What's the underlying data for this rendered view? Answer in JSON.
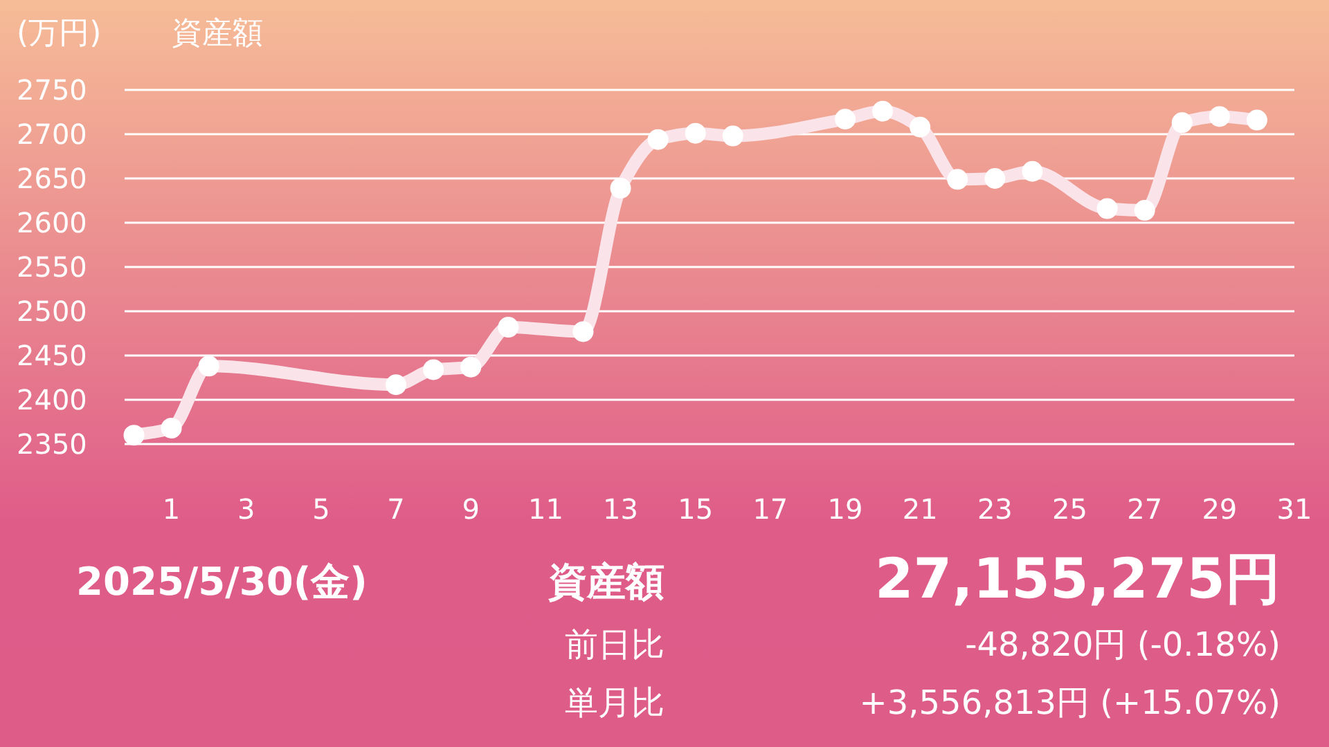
{
  "chart_data": {
    "type": "line",
    "title": "資産額",
    "ylabel": "(万円)",
    "x": [
      0,
      1,
      2,
      7,
      8,
      9,
      10,
      12,
      13,
      14,
      15,
      16,
      19,
      20,
      21,
      22,
      23,
      24,
      26,
      27,
      28,
      29,
      30
    ],
    "series": [
      {
        "color": "#fbe3ea",
        "values": [
          2360,
          2368,
          2438,
          2417,
          2434,
          2437,
          2482,
          2477,
          2639,
          2694,
          2701,
          2698,
          2717,
          2726,
          2708,
          2649,
          2650,
          2658,
          2616,
          2614,
          2713,
          2720,
          2716
        ]
      }
    ],
    "xlim": [
      -0.25,
      31
    ],
    "xticks": [
      1,
      3,
      5,
      7,
      9,
      11,
      13,
      15,
      17,
      19,
      21,
      23,
      25,
      27,
      29,
      31
    ],
    "ylim": [
      2350,
      2750
    ],
    "yticks": [
      2350,
      2400,
      2450,
      2500,
      2550,
      2600,
      2650,
      2700,
      2750
    ],
    "grid": "y",
    "marker": "circle",
    "line_style": "solid",
    "annotations": [
      "2025/5/30(金)",
      "資産額",
      "27,155,275円",
      "前日比",
      "-48,820円 (-0.18%)",
      "単月比",
      "+3,556,813円 (+15.07%)"
    ]
  }
}
